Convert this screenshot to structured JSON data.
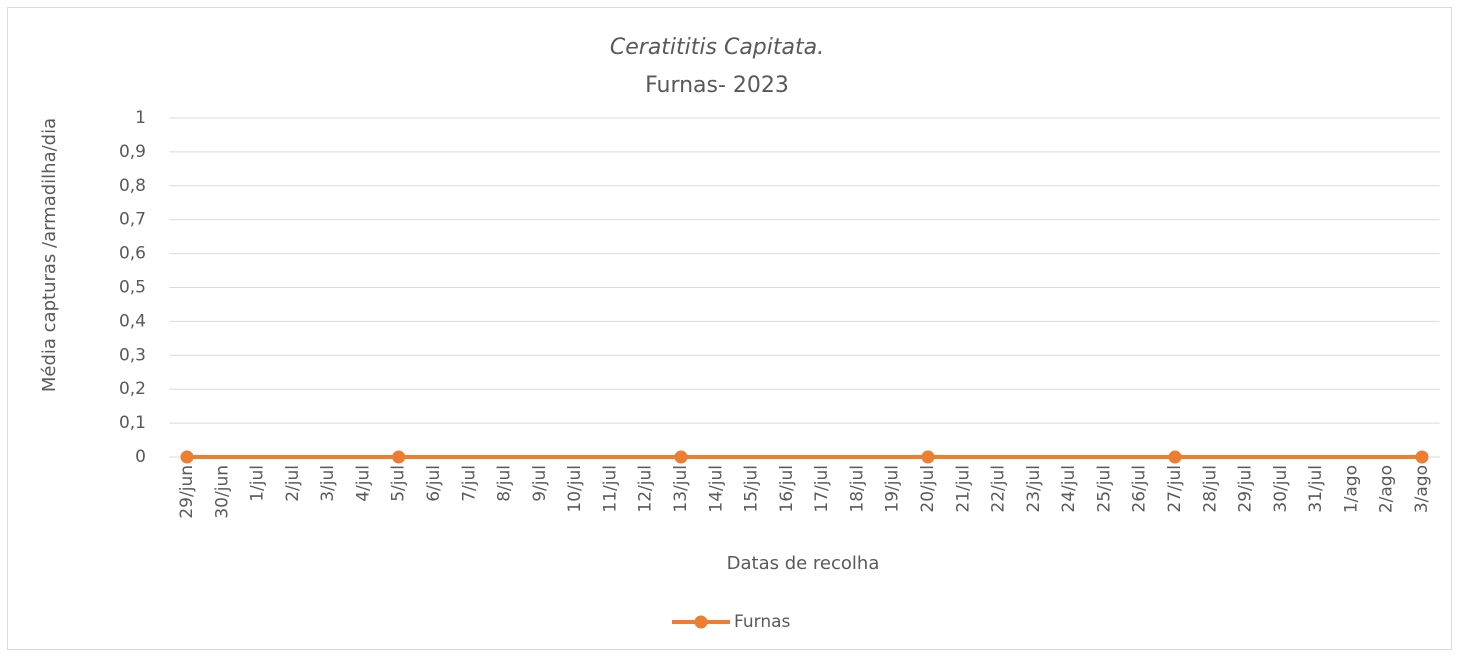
{
  "chart_data": {
    "type": "line",
    "title": "Ceratititis Capitata.",
    "subtitle": "Furnas- 2023",
    "x_label": "Datas de recolha",
    "y_label": "Média capturas /armadilha/dia",
    "xticks": [
      "29/jun",
      "30/jun",
      "1/jul",
      "2/jul",
      "3/jul",
      "4/jul",
      "5/jul",
      "6/jul",
      "7/jul",
      "8/jul",
      "9/jul",
      "10/jul",
      "11/jul",
      "12/jul",
      "13/jul",
      "14/jul",
      "15/jul",
      "16/jul",
      "17/jul",
      "18/jul",
      "19/jul",
      "20/jul",
      "21/jul",
      "22/jul",
      "23/jul",
      "24/jul",
      "25/jul",
      "26/jul",
      "27/jul",
      "28/jul",
      "29/jul",
      "30/jul",
      "31/jul",
      "1/ago",
      "2/ago",
      "3/ago"
    ],
    "x": [
      "29/jun",
      "5/jul",
      "13/jul",
      "20/jul",
      "27/jul",
      "3/ago"
    ],
    "series": [
      {
        "name": "Furnas",
        "color": "#ED7D31",
        "values": [
          0,
          0,
          0,
          0,
          0,
          0
        ]
      }
    ],
    "ylim": [
      0,
      1
    ],
    "yticks": [
      0,
      {
        "value": 0.1,
        "label": "0,1"
      },
      {
        "value": 0.2,
        "label": "0,2"
      },
      {
        "value": 0.3,
        "label": "0,3"
      },
      {
        "value": 0.4,
        "label": "0,4"
      },
      {
        "value": 0.5,
        "label": "0,5"
      },
      {
        "value": 0.6,
        "label": "0,6"
      },
      {
        "value": 0.7,
        "label": "0,7"
      },
      {
        "value": 0.8,
        "label": "0,8"
      },
      {
        "value": 0.9,
        "label": "0,9"
      },
      1
    ],
    "grid": true,
    "legend": "bottom"
  }
}
